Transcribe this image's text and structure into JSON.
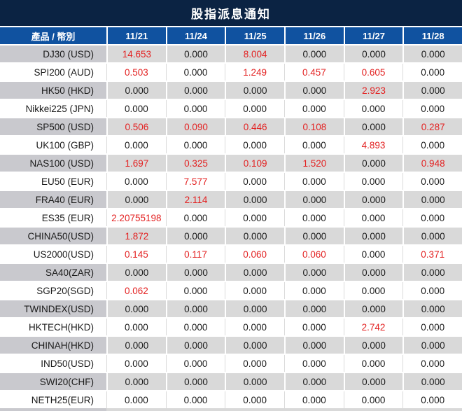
{
  "title": "股指派息通知",
  "table": {
    "corner_header": "產品 / 幣別",
    "date_headers": [
      "11/21",
      "11/24",
      "11/25",
      "11/26",
      "11/27",
      "11/28"
    ],
    "rows": [
      {
        "label": "DJ30 (USD)",
        "values": [
          "14.653",
          "0.000",
          "8.004",
          "0.000",
          "0.000",
          "0.000"
        ],
        "red": [
          1,
          0,
          1,
          0,
          0,
          0
        ]
      },
      {
        "label": "SPI200 (AUD)",
        "values": [
          "0.503",
          "0.000",
          "1.249",
          "0.457",
          "0.605",
          "0.000"
        ],
        "red": [
          1,
          0,
          1,
          1,
          1,
          0
        ]
      },
      {
        "label": "HK50 (HKD)",
        "values": [
          "0.000",
          "0.000",
          "0.000",
          "0.000",
          "2.923",
          "0.000"
        ],
        "red": [
          0,
          0,
          0,
          0,
          1,
          0
        ]
      },
      {
        "label": "Nikkei225 (JPN)",
        "values": [
          "0.000",
          "0.000",
          "0.000",
          "0.000",
          "0.000",
          "0.000"
        ],
        "red": [
          0,
          0,
          0,
          0,
          0,
          0
        ]
      },
      {
        "label": "SP500 (USD)",
        "values": [
          "0.506",
          "0.090",
          "0.446",
          "0.108",
          "0.000",
          "0.287"
        ],
        "red": [
          1,
          1,
          1,
          1,
          0,
          1
        ]
      },
      {
        "label": "UK100 (GBP)",
        "values": [
          "0.000",
          "0.000",
          "0.000",
          "0.000",
          "4.893",
          "0.000"
        ],
        "red": [
          0,
          0,
          0,
          0,
          1,
          0
        ]
      },
      {
        "label": "NAS100 (USD)",
        "values": [
          "1.697",
          "0.325",
          "0.109",
          "1.520",
          "0.000",
          "0.948"
        ],
        "red": [
          1,
          1,
          1,
          1,
          0,
          1
        ]
      },
      {
        "label": "EU50 (EUR)",
        "values": [
          "0.000",
          "7.577",
          "0.000",
          "0.000",
          "0.000",
          "0.000"
        ],
        "red": [
          0,
          1,
          0,
          0,
          0,
          0
        ]
      },
      {
        "label": "FRA40 (EUR)",
        "values": [
          "0.000",
          "2.114",
          "0.000",
          "0.000",
          "0.000",
          "0.000"
        ],
        "red": [
          0,
          1,
          0,
          0,
          0,
          0
        ]
      },
      {
        "label": "ES35 (EUR)",
        "values": [
          "2.20755198",
          "0.000",
          "0.000",
          "0.000",
          "0.000",
          "0.000"
        ],
        "red": [
          1,
          0,
          0,
          0,
          0,
          0
        ]
      },
      {
        "label": "CHINA50(USD)",
        "values": [
          "1.872",
          "0.000",
          "0.000",
          "0.000",
          "0.000",
          "0.000"
        ],
        "red": [
          1,
          0,
          0,
          0,
          0,
          0
        ]
      },
      {
        "label": "US2000(USD)",
        "values": [
          "0.145",
          "0.117",
          "0.060",
          "0.060",
          "0.000",
          "0.371"
        ],
        "red": [
          1,
          1,
          1,
          1,
          0,
          1
        ]
      },
      {
        "label": "SA40(ZAR)",
        "values": [
          "0.000",
          "0.000",
          "0.000",
          "0.000",
          "0.000",
          "0.000"
        ],
        "red": [
          0,
          0,
          0,
          0,
          0,
          0
        ]
      },
      {
        "label": "SGP20(SGD)",
        "values": [
          "0.062",
          "0.000",
          "0.000",
          "0.000",
          "0.000",
          "0.000"
        ],
        "red": [
          1,
          0,
          0,
          0,
          0,
          0
        ]
      },
      {
        "label": "TWINDEX(USD)",
        "values": [
          "0.000",
          "0.000",
          "0.000",
          "0.000",
          "0.000",
          "0.000"
        ],
        "red": [
          0,
          0,
          0,
          0,
          0,
          0
        ]
      },
      {
        "label": "HKTECH(HKD)",
        "values": [
          "0.000",
          "0.000",
          "0.000",
          "0.000",
          "2.742",
          "0.000"
        ],
        "red": [
          0,
          0,
          0,
          0,
          1,
          0
        ]
      },
      {
        "label": "CHINAH(HKD)",
        "values": [
          "0.000",
          "0.000",
          "0.000",
          "0.000",
          "0.000",
          "0.000"
        ],
        "red": [
          0,
          0,
          0,
          0,
          0,
          0
        ]
      },
      {
        "label": "IND50(USD)",
        "values": [
          "0.000",
          "0.000",
          "0.000",
          "0.000",
          "0.000",
          "0.000"
        ],
        "red": [
          0,
          0,
          0,
          0,
          0,
          0
        ]
      },
      {
        "label": "SWI20(CHF)",
        "values": [
          "0.000",
          "0.000",
          "0.000",
          "0.000",
          "0.000",
          "0.000"
        ],
        "red": [
          0,
          0,
          0,
          0,
          0,
          0
        ]
      },
      {
        "label": "NETH25(EUR)",
        "values": [
          "0.000",
          "0.000",
          "0.000",
          "0.000",
          "0.000",
          "0.000"
        ],
        "red": [
          0,
          0,
          0,
          0,
          0,
          0
        ]
      }
    ]
  },
  "colors": {
    "title_bg": "#0B2343",
    "header_bg": "#1052A0",
    "row_gray": "#D9D9D9",
    "label_gray": "#C9C9CE",
    "highlight_red": "#E32222",
    "text_black": "#1A1A1A"
  }
}
